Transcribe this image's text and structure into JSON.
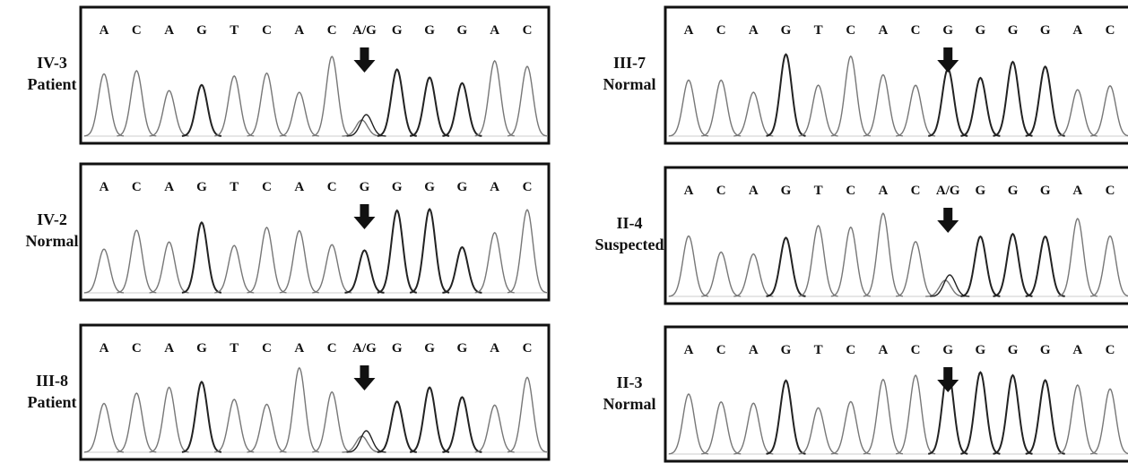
{
  "panels": [
    {
      "id": "IV-3",
      "status": "Patient",
      "bases": [
        "A",
        "C",
        "A",
        "G",
        "T",
        "C",
        "A",
        "C",
        "A/G",
        "G",
        "G",
        "G",
        "A",
        "C"
      ]
    },
    {
      "id": "IV-2",
      "status": "Normal",
      "bases": [
        "A",
        "C",
        "A",
        "G",
        "T",
        "C",
        "A",
        "C",
        "G",
        "G",
        "G",
        "G",
        "A",
        "C"
      ]
    },
    {
      "id": "III-8",
      "status": "Patient",
      "bases": [
        "A",
        "C",
        "A",
        "G",
        "T",
        "C",
        "A",
        "C",
        "A/G",
        "G",
        "G",
        "G",
        "A",
        "C"
      ]
    },
    {
      "id": "III-7",
      "status": "Normal",
      "bases": [
        "A",
        "C",
        "A",
        "G",
        "T",
        "C",
        "A",
        "C",
        "G",
        "G",
        "G",
        "G",
        "A",
        "C"
      ]
    },
    {
      "id": "II-4",
      "status": "Suspected",
      "bases": [
        "A",
        "C",
        "A",
        "G",
        "T",
        "C",
        "A",
        "C",
        "A/G",
        "G",
        "G",
        "G",
        "A",
        "C"
      ]
    },
    {
      "id": "II-3",
      "status": "Normal",
      "bases": [
        "A",
        "C",
        "A",
        "G",
        "T",
        "C",
        "A",
        "C",
        "G",
        "G",
        "G",
        "G",
        "A",
        "C"
      ]
    }
  ]
}
